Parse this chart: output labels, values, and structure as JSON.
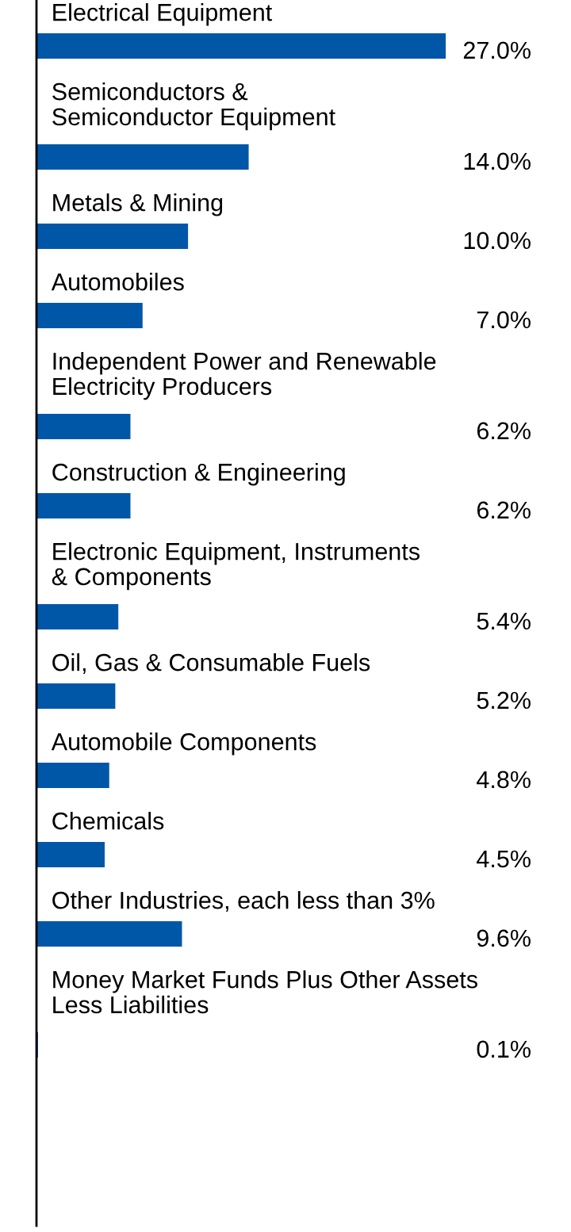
{
  "chart_data": {
    "type": "bar",
    "orientation": "horizontal",
    "categories": [
      "Electrical Equipment",
      "Semiconductors &\nSemiconductor Equipment",
      "Metals & Mining",
      "Automobiles",
      "Independent Power and Renewable\nElectricity Producers",
      "Construction & Engineering",
      "Electronic Equipment, Instruments\n& Components",
      "Oil, Gas & Consumable Fuels",
      "Automobile Components",
      "Chemicals",
      "Other Industries, each less than 3%",
      "Money Market Funds Plus Other Assets\nLess Liabilities"
    ],
    "values": [
      27.0,
      14.0,
      10.0,
      7.0,
      6.2,
      6.2,
      5.4,
      5.2,
      4.8,
      4.5,
      9.6,
      0.1
    ],
    "value_labels": [
      "27.0%",
      "14.0%",
      "10.0%",
      "7.0%",
      "6.2%",
      "6.2%",
      "5.4%",
      "5.2%",
      "4.8%",
      "4.5%",
      "9.6%",
      "0.1%"
    ],
    "color": "#0057a8"
  }
}
